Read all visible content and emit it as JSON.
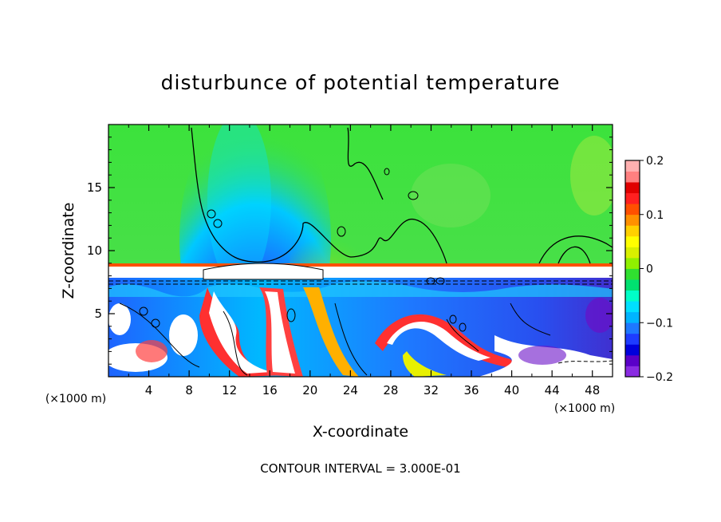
{
  "chart_data": {
    "type": "heatmap",
    "title": "disturbunce of potential temperature",
    "xlabel": "X-coordinate",
    "ylabel": "Z-coordinate",
    "x_unit_left": "(×1000 m)",
    "x_unit_right": "(×1000 m)",
    "footer": "CONTOUR INTERVAL = 3.000E-01",
    "xlim": [
      0,
      50
    ],
    "ylim": [
      0,
      20
    ],
    "x_ticks": [
      4,
      8,
      12,
      16,
      20,
      24,
      28,
      32,
      36,
      40,
      44,
      48
    ],
    "y_ticks": [
      5,
      10,
      15
    ],
    "colorbar": {
      "min": -0.2,
      "max": 0.2,
      "labels": [
        0.2,
        0.1,
        0,
        -0.1,
        -0.2
      ],
      "label_text": [
        "0.2",
        "0.1",
        "0",
        "−0.1",
        "−0.2"
      ],
      "colors": [
        "#8a2be2",
        "#5a00c8",
        "#0000dc",
        "#1e3cff",
        "#1e78ff",
        "#00b4ff",
        "#00e0ff",
        "#00ffc8",
        "#00e070",
        "#30e030",
        "#90f000",
        "#d8f000",
        "#ffff00",
        "#ffd000",
        "#ff9000",
        "#ff5000",
        "#ff2020",
        "#e00000",
        "#ff8080",
        "#ffb0b0"
      ]
    }
  }
}
